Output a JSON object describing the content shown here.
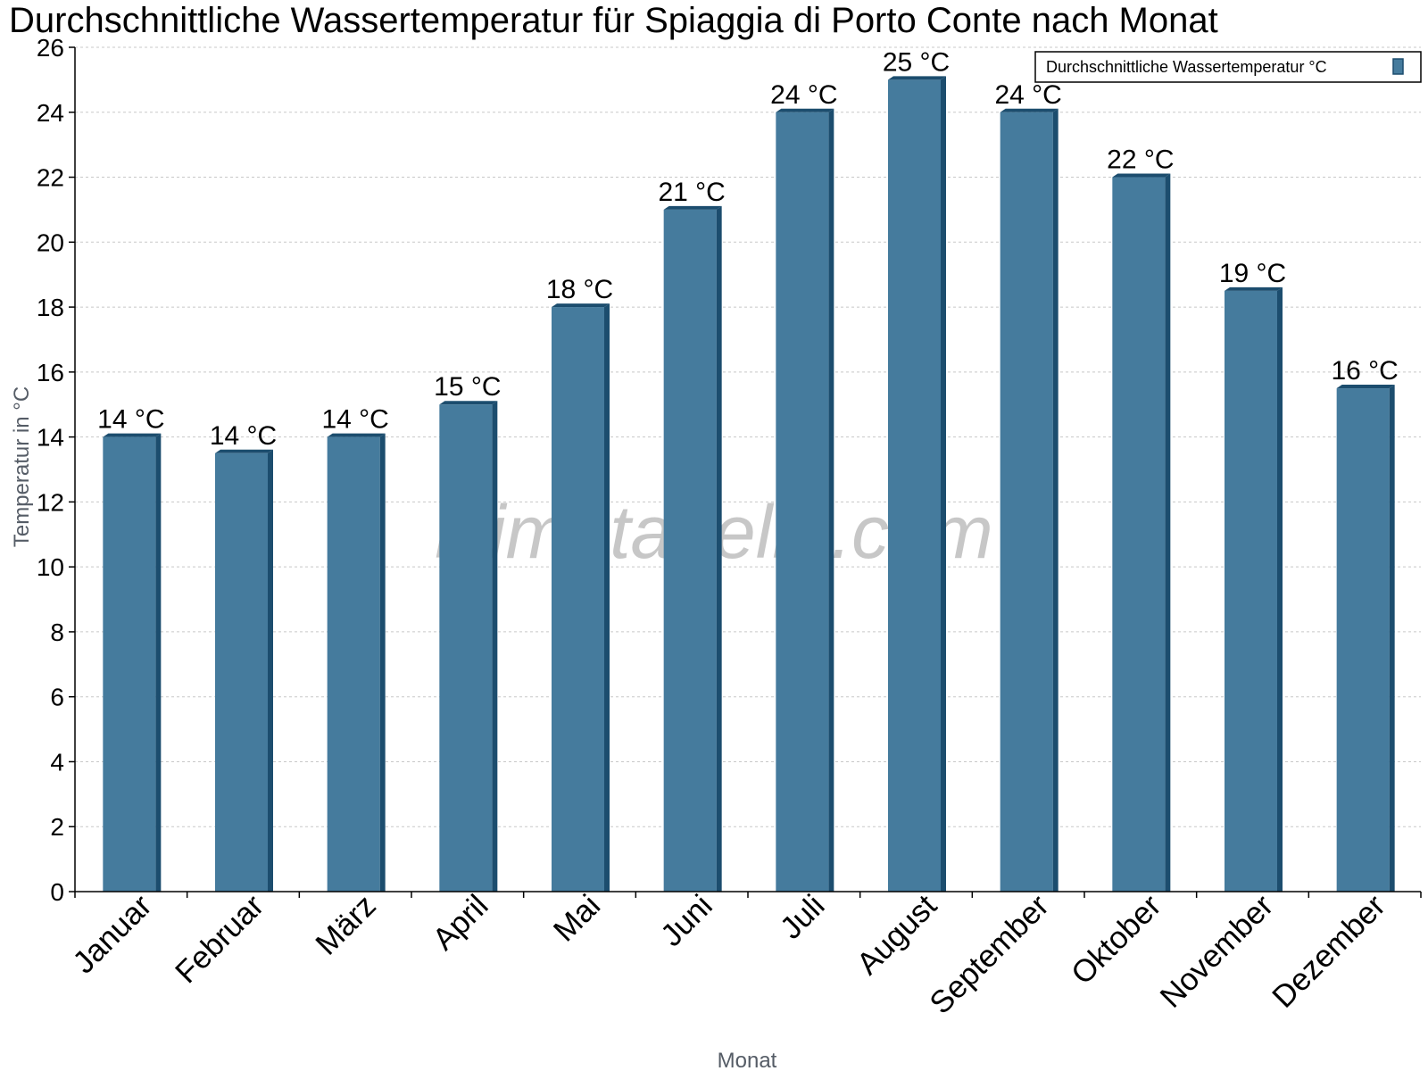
{
  "chart_data": {
    "type": "bar",
    "title": "Durchschnittliche Wassertemperatur für Spiaggia di Porto Conte nach Monat",
    "xlabel": "Monat",
    "ylabel": "Temperatur in °C",
    "ylim": [
      0,
      26
    ],
    "yticks": [
      "0",
      "2",
      "4",
      "6",
      "8",
      "10",
      "12",
      "14",
      "16",
      "18",
      "20",
      "22",
      "24",
      "26"
    ],
    "grid": true,
    "legend_position": "top-right",
    "categories": [
      "Januar",
      "Februar",
      "März",
      "April",
      "Mai",
      "Juni",
      "Juli",
      "August",
      "September",
      "Oktober",
      "November",
      "Dezember"
    ],
    "series": [
      {
        "name": "Durchschnittliche Wassertemperatur °C",
        "color": "#457b9d",
        "values": [
          14,
          13.5,
          14,
          15,
          18,
          21,
          24,
          25,
          24,
          22,
          18.5,
          15.5
        ],
        "labels": [
          "14 °C",
          "14 °C",
          "14 °C",
          "15 °C",
          "18 °C",
          "21 °C",
          "24 °C",
          "25 °C",
          "24 °C",
          "22 °C",
          "19 °C",
          "16 °C"
        ]
      }
    ]
  },
  "watermark": "klimatabelle.com",
  "colors": {
    "bar": "#457b9d",
    "bar_side": "#1c4d6e",
    "grid": "#c8c8c8"
  }
}
